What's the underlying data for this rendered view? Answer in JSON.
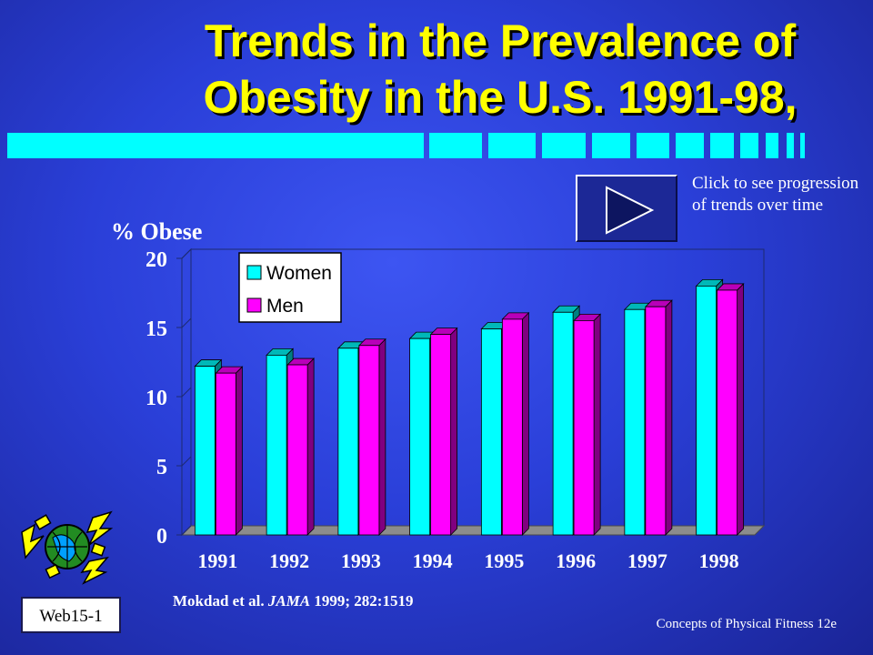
{
  "title_lines": [
    "Trends in the Prevalence of",
    "Obesity in the U.S. 1991-98,"
  ],
  "play_note": "Click to see progression of trends over time",
  "reference": {
    "prefix": "Mokdad et al. ",
    "journal": "JAMA",
    "suffix": " 1999; 282:1519"
  },
  "web_label": "Web15-1",
  "footer": "Concepts of Physical Fitness 12e",
  "icons": {
    "play": "play-icon",
    "globe": "web-globe-icon"
  },
  "colors": {
    "women": "#00ffff",
    "men": "#ff00ff",
    "title": "#ffff00",
    "accent_bars": "#00ffff"
  },
  "chart_data": {
    "type": "bar",
    "ylabel": "% Obese",
    "categories": [
      "1991",
      "1992",
      "1993",
      "1994",
      "1995",
      "1996",
      "1997",
      "1998"
    ],
    "series": [
      {
        "name": "Women",
        "values": [
          12.2,
          13.0,
          13.5,
          14.2,
          14.9,
          16.1,
          16.3,
          18.0
        ]
      },
      {
        "name": "Men",
        "values": [
          11.7,
          12.3,
          13.7,
          14.5,
          15.6,
          15.5,
          16.5,
          17.7
        ]
      }
    ],
    "ylim": [
      0,
      20
    ],
    "yticks": [
      "0",
      "5",
      "10",
      "15",
      "20"
    ],
    "grid": false,
    "legend": "top-left"
  }
}
